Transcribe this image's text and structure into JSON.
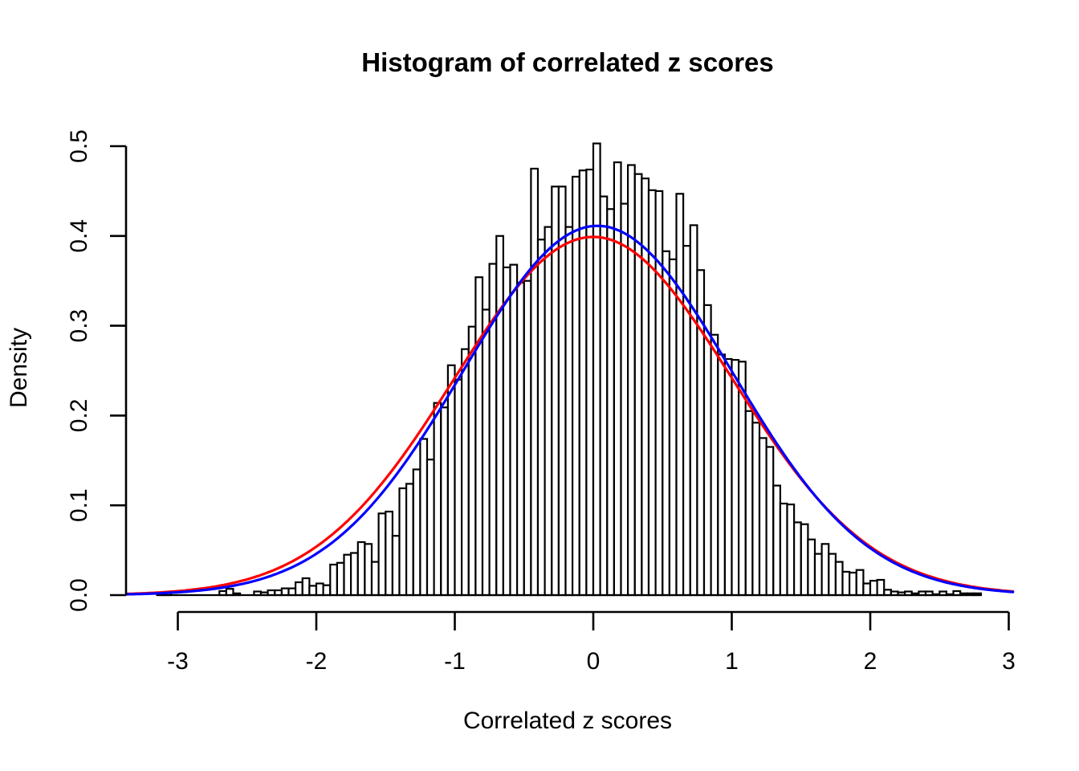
{
  "page": {
    "background_color": "#ffffff",
    "foreground_color": "#000000"
  },
  "chart_data": {
    "type": "histogram",
    "title": "Histogram of correlated z scores",
    "xlabel": "Correlated z scores",
    "ylabel": "Density",
    "x_ticks": [
      "-3",
      "-2",
      "-1",
      "0",
      "1",
      "2",
      "3"
    ],
    "y_ticks": [
      "0.0",
      "0.1",
      "0.2",
      "0.3",
      "0.4",
      "0.5"
    ],
    "xlim": [
      -3.37,
      3.07
    ],
    "ylim": [
      0.0,
      0.5
    ],
    "grid": "off",
    "legend": "none",
    "bar_fill": "#ffffff",
    "bar_stroke": "#000000",
    "bins": {
      "start": -3.15,
      "width": 0.05,
      "densities": [
        0.003,
        0.003,
        0,
        0,
        0,
        0,
        0,
        0,
        0,
        0.0045,
        0.007,
        0.002,
        0,
        0,
        0.004,
        0.003,
        0.0054,
        0.0054,
        0.0075,
        0.0075,
        0.0143,
        0.0188,
        0.0104,
        0.013,
        0.011,
        0.034,
        0.036,
        0.045,
        0.047,
        0.059,
        0.057,
        0.037,
        0.091,
        0.093,
        0.066,
        0.119,
        0.124,
        0.14,
        0.174,
        0.151,
        0.214,
        0.209,
        0.256,
        0.24,
        0.274,
        0.299,
        0.354,
        0.318,
        0.369,
        0.4,
        0.365,
        0.368,
        0.348,
        0.35,
        0.475,
        0.396,
        0.41,
        0.455,
        0.455,
        0.41,
        0.466,
        0.473,
        0.474,
        0.503,
        0.444,
        0.43,
        0.482,
        0.436,
        0.479,
        0.469,
        0.464,
        0.451,
        0.45,
        0.383,
        0.374,
        0.447,
        0.389,
        0.412,
        0.362,
        0.323,
        0.29,
        0.268,
        0.263,
        0.262,
        0.26,
        0.205,
        0.192,
        0.175,
        0.165,
        0.122,
        0.102,
        0.101,
        0.081,
        0.079,
        0.062,
        0.046,
        0.057,
        0.046,
        0.037,
        0.026,
        0.025,
        0.028,
        0.013,
        0.016,
        0.017,
        0.006,
        0.004,
        0.003,
        0.004,
        0.002,
        0.004,
        0.004,
        0.001,
        0.004,
        0.001,
        0.0045,
        0.002,
        0.002,
        0.002
      ]
    },
    "curves": [
      {
        "name": "normal-curve",
        "color": "#ff0000",
        "mean": 0,
        "sd": 1.0,
        "z_range": [
          -3.37,
          3.03
        ]
      },
      {
        "name": "density-curve",
        "color": "#0000ff",
        "mean": 0.03,
        "sd": 0.97,
        "z_range": [
          -3.37,
          3.03
        ]
      }
    ]
  }
}
